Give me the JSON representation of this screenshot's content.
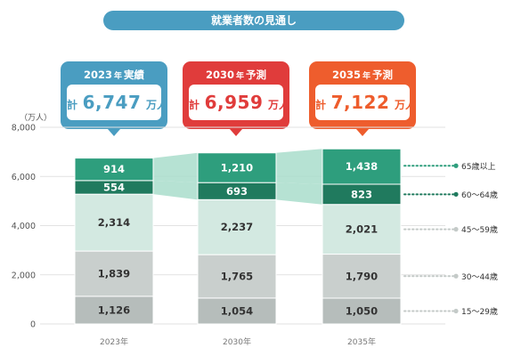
{
  "header": {
    "title": "就業者数の見通し"
  },
  "callouts": [
    {
      "caption_year": "2023",
      "caption_nen": "年",
      "caption_kind": "実績",
      "prefix": "計",
      "total": "6,747",
      "suffix": "万人",
      "color": "#4a9dc1"
    },
    {
      "caption_year": "2030",
      "caption_nen": "年",
      "caption_kind": "予測",
      "prefix": "計",
      "total": "6,959",
      "suffix": "万人",
      "color": "#e03c3b"
    },
    {
      "caption_year": "2035",
      "caption_nen": "年",
      "caption_kind": "予測",
      "prefix": "計",
      "total": "7,122",
      "suffix": "万人",
      "color": "#ee5d2d"
    }
  ],
  "chart_data": {
    "type": "bar",
    "stacked": true,
    "unit_label": "（万人）",
    "categories": [
      "2023年",
      "2030年",
      "2035年"
    ],
    "yticks": [
      "0",
      "2,000",
      "4,000",
      "6,000",
      "8,000"
    ],
    "ylim": [
      0,
      8000
    ],
    "grid": true,
    "series": [
      {
        "name": "15～29歳",
        "values": [
          1126,
          1054,
          1050
        ],
        "labels": [
          "1,126",
          "1,054",
          "1,050"
        ],
        "color": "#b6bdbb",
        "dot": "#c4cac8"
      },
      {
        "name": "30～44歳",
        "values": [
          1839,
          1765,
          1790
        ],
        "labels": [
          "1,839",
          "1,765",
          "1,790"
        ],
        "color": "#c9cfcd",
        "dot": "#c4cac8"
      },
      {
        "name": "45～59歳",
        "values": [
          2314,
          2237,
          2021
        ],
        "labels": [
          "2,314",
          "2,237",
          "2,021"
        ],
        "color": "#d3e9e1",
        "dot": "#c4cac8"
      },
      {
        "name": "60～64歳",
        "values": [
          554,
          693,
          823
        ],
        "labels": [
          "554",
          "693",
          "823"
        ],
        "color": "#207a5e",
        "dot": "#207a5e"
      },
      {
        "name": "65歳以上",
        "values": [
          914,
          1210,
          1438
        ],
        "labels": [
          "914",
          "1,210",
          "1,438"
        ],
        "color": "#2e9e7d",
        "dot": "#2e9e7d"
      }
    ],
    "connector_color": "#a9ddcb"
  }
}
